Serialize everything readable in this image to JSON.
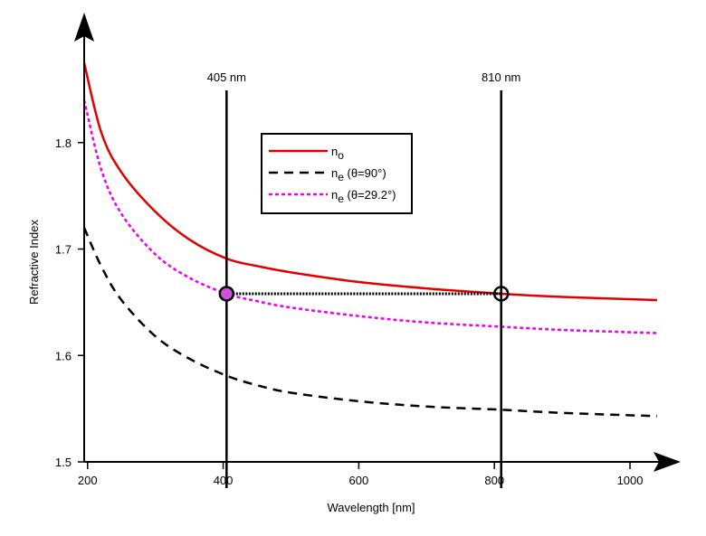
{
  "chart_data": {
    "type": "line",
    "title": "",
    "xlabel": "Wavelength [nm]",
    "ylabel": "Refractive Index",
    "xlim": [
      195,
      1040
    ],
    "ylim": [
      1.5,
      1.9
    ],
    "xticks": [
      200,
      400,
      600,
      800,
      1000
    ],
    "xtick_labels": [
      "200",
      "400",
      "600",
      "800",
      "1000"
    ],
    "yticks": [
      1.5,
      1.6,
      1.7,
      1.8
    ],
    "ytick_labels": [
      "1.5",
      "1.6",
      "1.7",
      "1.8"
    ],
    "grid": false,
    "legend_position": "upper-center",
    "legend": [
      {
        "main": "n",
        "sub": "o",
        "rest": "",
        "color": "#e00000",
        "dash": "solid"
      },
      {
        "main": "n",
        "sub": "e",
        "rest": " (θ=90°)",
        "color": "#000000",
        "dash": "dashed"
      },
      {
        "main": "n",
        "sub": "e",
        "rest": " (θ=29.2°)",
        "color": "#ee00ee",
        "dash": "dotted"
      }
    ],
    "series": [
      {
        "name": "no",
        "color": "#e00000",
        "x": [
          195,
          220,
          250,
          300,
          350,
          405,
          450,
          500,
          600,
          700,
          810,
          900,
          1040
        ],
        "y": [
          1.875,
          1.81,
          1.772,
          1.735,
          1.709,
          1.691,
          1.684,
          1.678,
          1.669,
          1.663,
          1.658,
          1.655,
          1.652
        ]
      },
      {
        "name": "ne (θ=90°)",
        "color": "#000000",
        "x": [
          195,
          220,
          250,
          300,
          350,
          405,
          450,
          500,
          600,
          700,
          810,
          900,
          1040
        ],
        "y": [
          1.72,
          1.684,
          1.652,
          1.618,
          1.597,
          1.581,
          1.572,
          1.565,
          1.557,
          1.552,
          1.549,
          1.546,
          1.543
        ]
      },
      {
        "name": "ne (θ=29.2°)",
        "color": "#ee00ee",
        "x": [
          195,
          220,
          250,
          300,
          350,
          405,
          450,
          500,
          600,
          700,
          810,
          900,
          1040
        ],
        "y": [
          1.84,
          1.775,
          1.733,
          1.695,
          1.673,
          1.658,
          1.651,
          1.645,
          1.637,
          1.631,
          1.627,
          1.624,
          1.621
        ]
      }
    ],
    "vertical_markers": [
      {
        "x": 405,
        "label": "405 nm"
      },
      {
        "x": 810,
        "label": "810 nm"
      }
    ],
    "phase_match_points": [
      {
        "x": 405,
        "y": 1.658
      },
      {
        "x": 810,
        "y": 1.658
      }
    ]
  }
}
